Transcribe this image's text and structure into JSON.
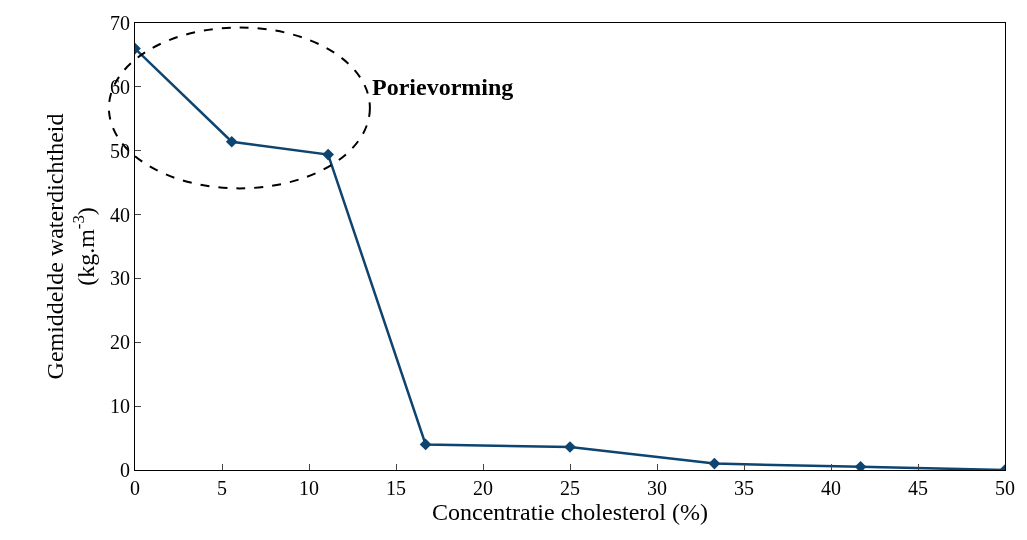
{
  "chart_data": {
    "type": "line",
    "xlabel": "Concentratie cholesterol (%)",
    "ylabel": "Gemiddelde waterdichtheid\n(kg.m$^{-3}$)",
    "annotations": [
      "Porievorming"
    ],
    "x": [
      0,
      5.56,
      11.1,
      16.7,
      25,
      33.3,
      41.7,
      50
    ],
    "series": [
      {
        "color": "#0e4470",
        "values": [
          66,
          51.4,
          49.4,
          4.0,
          3.6,
          1.0,
          0.5,
          0
        ]
      }
    ],
    "xlim": [
      0,
      50
    ],
    "xticks": [
      0,
      5,
      10,
      15,
      20,
      25,
      30,
      35,
      40,
      45,
      50
    ],
    "ylim": [
      0,
      70
    ],
    "yticks": [
      0,
      10,
      20,
      30,
      40,
      50,
      60,
      70
    ],
    "legend": false,
    "marker": "diamond",
    "line_style": "solid"
  }
}
